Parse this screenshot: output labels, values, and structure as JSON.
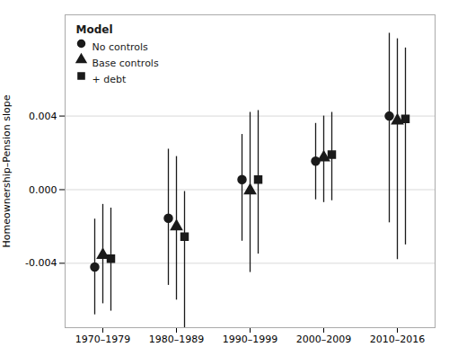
{
  "chart_data": {
    "type": "errorbar",
    "categories": [
      "1970–1979",
      "1980–1989",
      "1990–1999",
      "2000–2009",
      "2010–2016"
    ],
    "ylabel": "Homeownership–Pension slope",
    "ylim": [
      -0.0075,
      0.0095
    ],
    "yticks": [
      -0.004,
      {
        "value": 0,
        "label": "0.000"
      },
      0.004
    ],
    "grid": "y",
    "legend": "upper left",
    "legend_title": "Model",
    "series": [
      {
        "name": "No controls",
        "color": "#1a1a1a",
        "marker": "circle",
        "values": [
          -0.0042,
          -0.00155,
          0.00055,
          0.00155,
          0.004
        ],
        "ci_lower": [
          -0.0068,
          -0.0052,
          -0.0028,
          -0.00055,
          -0.0018
        ],
        "ci_upper": [
          -0.0016,
          0.0022,
          0.003,
          0.0036,
          0.0085
        ]
      },
      {
        "name": "Base controls",
        "color": "#1a1a1a",
        "marker": "triangle",
        "values": [
          -0.00355,
          -0.002,
          -5e-05,
          0.00175,
          0.00375
        ],
        "ci_lower": [
          -0.0062,
          -0.006,
          -0.0045,
          -0.0007,
          -0.0038
        ],
        "ci_upper": [
          -0.0008,
          0.0018,
          0.0042,
          0.004,
          0.0082
        ]
      },
      {
        "name": "+ debt",
        "color": "#1a1a1a",
        "marker": "square",
        "values": [
          -0.00375,
          -0.00255,
          0.00055,
          0.0019,
          0.00385
        ],
        "ci_lower": [
          -0.0066,
          -0.0075,
          -0.0035,
          -0.0006,
          -0.003
        ],
        "ci_upper": [
          -0.001,
          -0.0001,
          0.0043,
          0.0042,
          0.0077
        ]
      }
    ]
  }
}
